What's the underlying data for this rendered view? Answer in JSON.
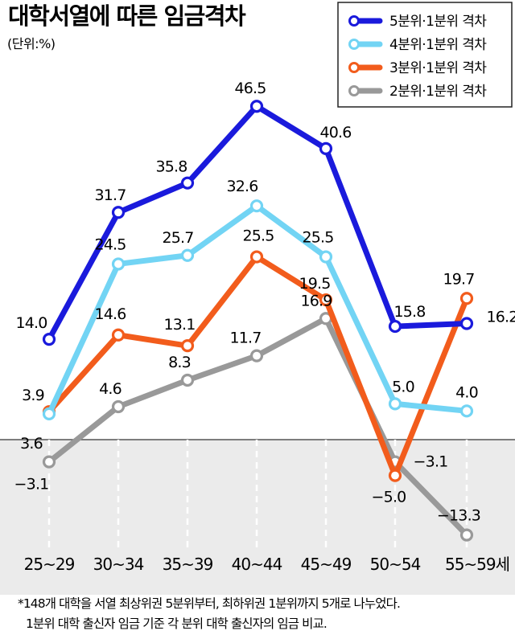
{
  "chart_data": {
    "type": "line",
    "title": "대학서열에 따른 임금격차",
    "unit": "(단위:%)",
    "categories": [
      "25~29",
      "30~34",
      "35~39",
      "40~44",
      "45~49",
      "50~54",
      "55~59세"
    ],
    "ylim": [
      -16,
      52
    ],
    "baseline": 0,
    "legend_position": "top-right",
    "series": [
      {
        "name": "5분위·1분위 격차",
        "color": "#1a1adc",
        "values": [
          14.0,
          31.7,
          35.8,
          46.5,
          40.6,
          15.8,
          16.2
        ],
        "labels": [
          "14.0",
          "31.7",
          "35.8",
          "46.5",
          "40.6",
          "15.8",
          "16.2"
        ]
      },
      {
        "name": "4분위·1분위 격차",
        "color": "#72d4f4",
        "values": [
          3.6,
          24.5,
          25.7,
          32.6,
          25.5,
          5.0,
          4.0
        ],
        "labels": [
          "3.6",
          "24.5",
          "25.7",
          "32.6",
          "25.5",
          "5.0",
          "4.0"
        ]
      },
      {
        "name": "3분위·1분위 격차",
        "color": "#f25c1c",
        "values": [
          3.9,
          14.6,
          13.1,
          25.5,
          19.5,
          -5.0,
          19.7
        ],
        "labels": [
          "3.9",
          "14.6",
          "13.1",
          "25.5",
          "19.5",
          "−5.0",
          "19.7"
        ]
      },
      {
        "name": "2분위·1분위 격차",
        "color": "#999999",
        "values": [
          -3.1,
          4.6,
          8.3,
          11.7,
          16.9,
          -3.1,
          -13.3
        ],
        "labels": [
          "−3.1",
          "4.6",
          "8.3",
          "11.7",
          "16.9",
          "−3.1",
          "−13.3"
        ]
      }
    ],
    "footnote": [
      "*148개 대학을 서열 최상위권 5분위부터, 최하위권 1분위까지 5개로 나누었다.",
      "1분위 대학 출신자 임금 기준 각 분위 대학 출신자의 임금 비교."
    ]
  }
}
